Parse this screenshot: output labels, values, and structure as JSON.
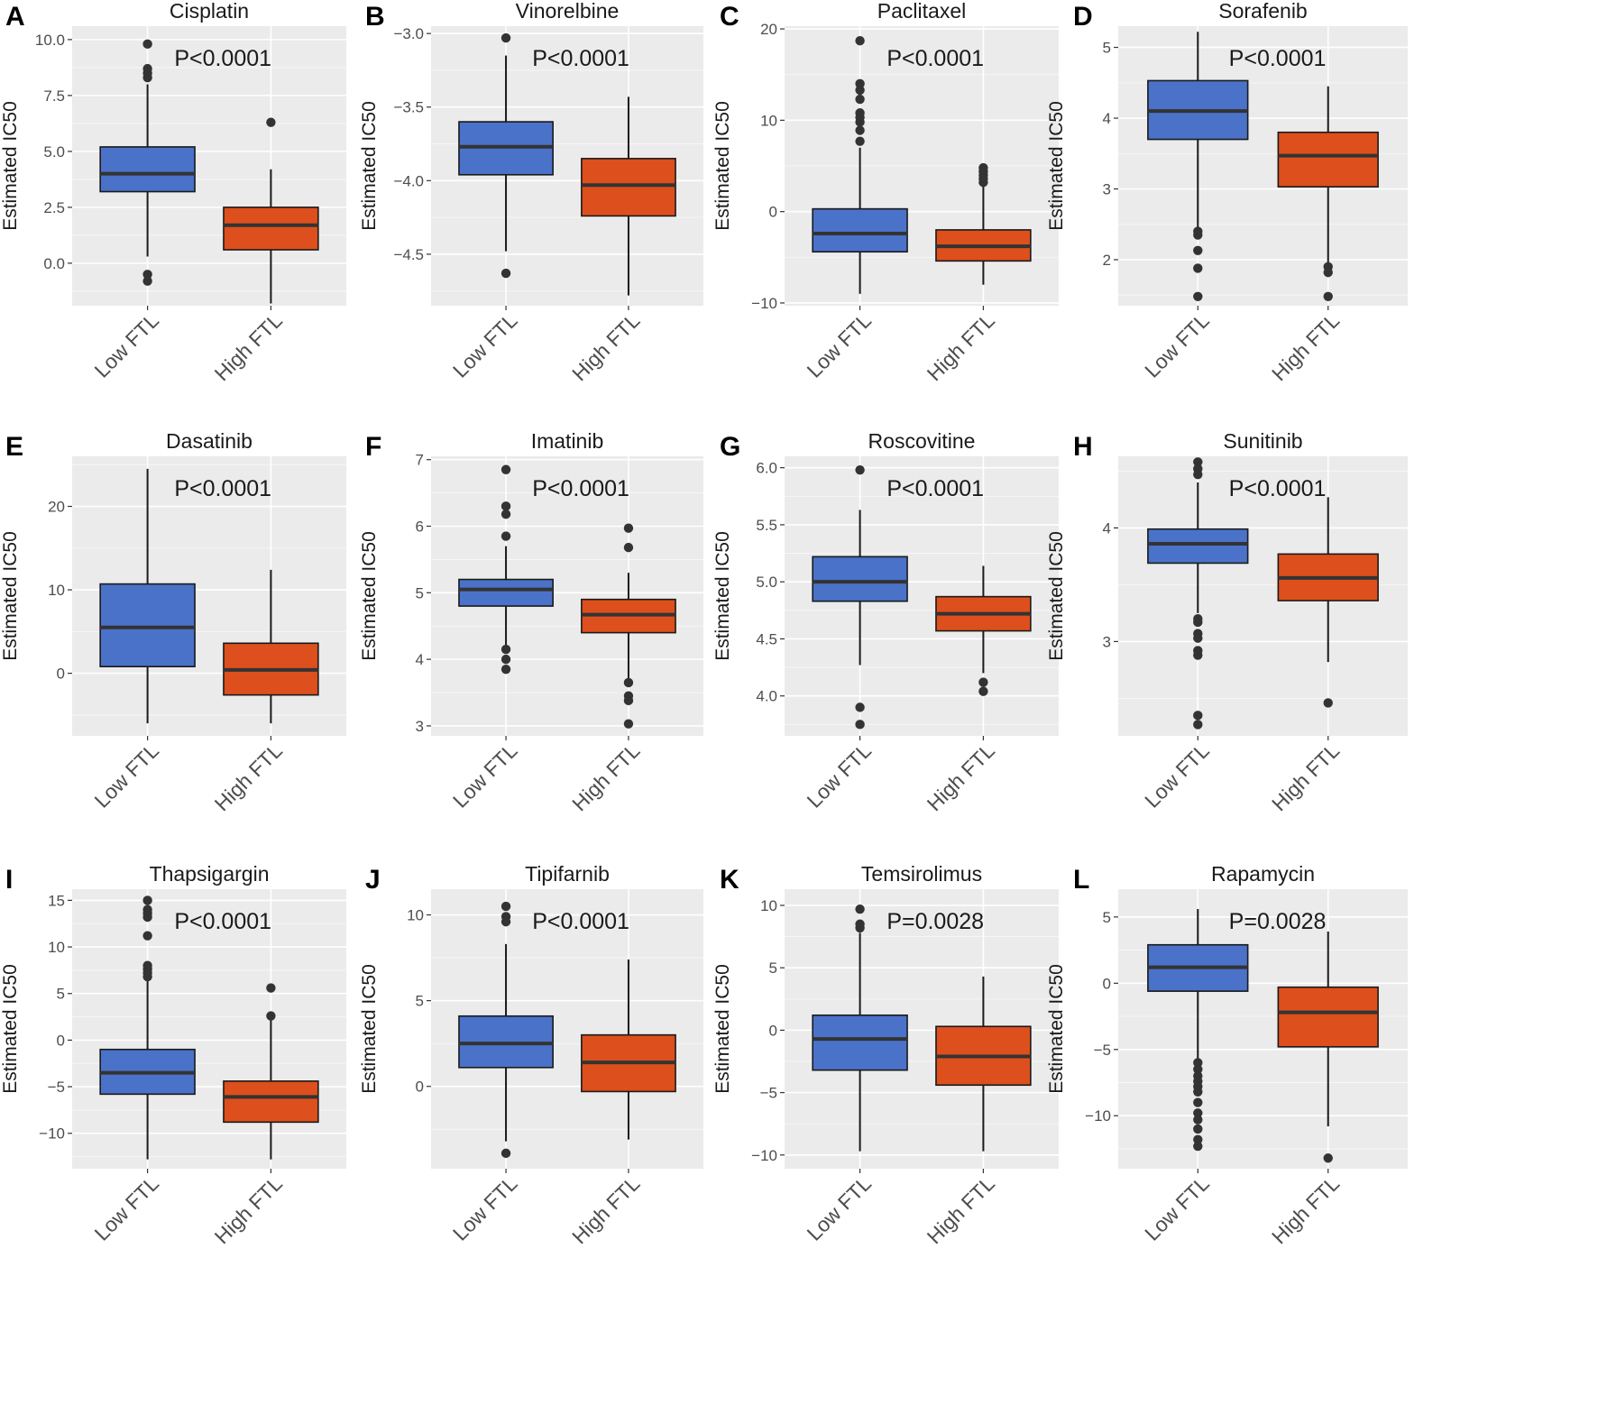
{
  "legend_colors": {
    "Low FTL": "#4a72c9",
    "High FTL": "#dd4f1c"
  },
  "chart_data": [
    {
      "panel": "A",
      "type": "boxplot",
      "title": "Cisplatin",
      "ylabel": "Estimated IC50",
      "categories": [
        "Low FTL",
        "High FTL"
      ],
      "ylim": [
        -1.9,
        10.6
      ],
      "yticks": [
        0,
        2.5,
        5,
        7.5,
        10
      ],
      "ytick_labels": [
        "0.0",
        "2.5",
        "5.0",
        "7.5",
        "10.0"
      ],
      "pvalue": "P<0.0001",
      "boxes": [
        {
          "group": "Low FTL",
          "color": "#4a72c9",
          "lower_whisker": 0.3,
          "q1": 3.2,
          "median": 4.0,
          "q3": 5.2,
          "upper_whisker": 8.0,
          "outliers": [
            9.8,
            8.7,
            8.5,
            8.3,
            -0.5,
            -0.8
          ]
        },
        {
          "group": "High FTL",
          "color": "#dd4f1c",
          "lower_whisker": -1.8,
          "q1": 0.6,
          "median": 1.7,
          "q3": 2.5,
          "upper_whisker": 4.2,
          "outliers": [
            6.3
          ]
        }
      ]
    },
    {
      "panel": "B",
      "type": "boxplot",
      "title": "Vinorelbine",
      "ylabel": "Estimated IC50",
      "categories": [
        "Low FTL",
        "High FTL"
      ],
      "ylim": [
        -4.85,
        -2.95
      ],
      "yticks": [
        -4.5,
        -4.0,
        -3.5,
        -3.0
      ],
      "ytick_labels": [
        "−4.5",
        "−4.0",
        "−3.5",
        "−3.0"
      ],
      "pvalue": "P<0.0001",
      "boxes": [
        {
          "group": "Low FTL",
          "color": "#4a72c9",
          "lower_whisker": -4.48,
          "q1": -3.96,
          "median": -3.77,
          "q3": -3.6,
          "upper_whisker": -3.15,
          "outliers": [
            -3.03,
            -4.63
          ]
        },
        {
          "group": "High FTL",
          "color": "#dd4f1c",
          "lower_whisker": -4.78,
          "q1": -4.24,
          "median": -4.03,
          "q3": -3.85,
          "upper_whisker": -3.43,
          "outliers": []
        }
      ]
    },
    {
      "panel": "C",
      "type": "boxplot",
      "title": "Paclitaxel",
      "ylabel": "Estimated IC50",
      "categories": [
        "Low FTL",
        "High FTL"
      ],
      "ylim": [
        -10.3,
        20.3
      ],
      "yticks": [
        -10,
        0,
        10,
        20
      ],
      "ytick_labels": [
        "−10",
        "0",
        "10",
        "20"
      ],
      "pvalue": "P<0.0001",
      "boxes": [
        {
          "group": "Low FTL",
          "color": "#4a72c9",
          "lower_whisker": -9.0,
          "q1": -4.4,
          "median": -2.4,
          "q3": 0.3,
          "upper_whisker": 7.0,
          "outliers": [
            18.7,
            14.0,
            13.3,
            12.3,
            10.8,
            10.3,
            9.8,
            8.9,
            7.7
          ]
        },
        {
          "group": "High FTL",
          "color": "#dd4f1c",
          "lower_whisker": -8.0,
          "q1": -5.4,
          "median": -3.8,
          "q3": -2.0,
          "upper_whisker": 3.0,
          "outliers": [
            4.8,
            4.4,
            4.0,
            3.6,
            3.2
          ]
        }
      ]
    },
    {
      "panel": "D",
      "type": "boxplot",
      "title": "Sorafenib",
      "ylabel": "Estimated IC50",
      "categories": [
        "Low FTL",
        "High FTL"
      ],
      "ylim": [
        1.35,
        5.3
      ],
      "yticks": [
        2,
        3,
        4,
        5
      ],
      "ytick_labels": [
        "2",
        "3",
        "4",
        "5"
      ],
      "pvalue": "P<0.0001",
      "boxes": [
        {
          "group": "Low FTL",
          "color": "#4a72c9",
          "lower_whisker": 2.45,
          "q1": 3.7,
          "median": 4.1,
          "q3": 4.53,
          "upper_whisker": 5.22,
          "outliers": [
            2.4,
            2.35,
            2.13,
            1.88,
            1.48
          ]
        },
        {
          "group": "High FTL",
          "color": "#dd4f1c",
          "lower_whisker": 1.95,
          "q1": 3.03,
          "median": 3.47,
          "q3": 3.8,
          "upper_whisker": 4.45,
          "outliers": [
            1.9,
            1.82,
            1.48
          ]
        }
      ]
    },
    {
      "panel": "E",
      "type": "boxplot",
      "title": "Dasatinib",
      "ylabel": "Estimated IC50",
      "categories": [
        "Low FTL",
        "High FTL"
      ],
      "ylim": [
        -7.5,
        26
      ],
      "yticks": [
        0,
        10,
        20
      ],
      "ytick_labels": [
        "0",
        "10",
        "20"
      ],
      "pvalue": "P<0.0001",
      "boxes": [
        {
          "group": "Low FTL",
          "color": "#4a72c9",
          "lower_whisker": -6.0,
          "q1": 0.8,
          "median": 5.5,
          "q3": 10.7,
          "upper_whisker": 24.5,
          "outliers": []
        },
        {
          "group": "High FTL",
          "color": "#dd4f1c",
          "lower_whisker": -6.0,
          "q1": -2.6,
          "median": 0.4,
          "q3": 3.6,
          "upper_whisker": 12.4,
          "outliers": []
        }
      ]
    },
    {
      "panel": "F",
      "type": "boxplot",
      "title": "Imatinib",
      "ylabel": "Estimated IC50",
      "categories": [
        "Low FTL",
        "High FTL"
      ],
      "ylim": [
        2.85,
        7.05
      ],
      "yticks": [
        3,
        4,
        5,
        6,
        7
      ],
      "ytick_labels": [
        "3",
        "4",
        "5",
        "6",
        "7"
      ],
      "pvalue": "P<0.0001",
      "boxes": [
        {
          "group": "Low FTL",
          "color": "#4a72c9",
          "lower_whisker": 4.2,
          "q1": 4.8,
          "median": 5.05,
          "q3": 5.2,
          "upper_whisker": 5.7,
          "outliers": [
            6.85,
            6.3,
            6.18,
            5.85,
            4.15,
            4.0,
            3.85
          ]
        },
        {
          "group": "High FTL",
          "color": "#dd4f1c",
          "lower_whisker": 3.7,
          "q1": 4.4,
          "median": 4.67,
          "q3": 4.9,
          "upper_whisker": 5.3,
          "outliers": [
            5.97,
            5.68,
            3.65,
            3.45,
            3.38,
            3.03
          ]
        }
      ]
    },
    {
      "panel": "G",
      "type": "boxplot",
      "title": "Roscovitine",
      "ylabel": "Estimated IC50",
      "categories": [
        "Low FTL",
        "High FTL"
      ],
      "ylim": [
        3.65,
        6.1
      ],
      "yticks": [
        4.0,
        4.5,
        5.0,
        5.5,
        6.0
      ],
      "ytick_labels": [
        "4.0",
        "4.5",
        "5.0",
        "5.5",
        "6.0"
      ],
      "pvalue": "P<0.0001",
      "boxes": [
        {
          "group": "Low FTL",
          "color": "#4a72c9",
          "lower_whisker": 4.27,
          "q1": 4.83,
          "median": 5.0,
          "q3": 5.22,
          "upper_whisker": 5.63,
          "outliers": [
            5.98,
            3.9,
            3.75
          ]
        },
        {
          "group": "High FTL",
          "color": "#dd4f1c",
          "lower_whisker": 4.2,
          "q1": 4.57,
          "median": 4.72,
          "q3": 4.87,
          "upper_whisker": 5.14,
          "outliers": [
            4.12,
            4.04
          ]
        }
      ]
    },
    {
      "panel": "H",
      "type": "boxplot",
      "title": "Sunitinib",
      "ylabel": "Estimated IC50",
      "categories": [
        "Low FTL",
        "High FTL"
      ],
      "ylim": [
        2.17,
        4.63
      ],
      "yticks": [
        3,
        4
      ],
      "ytick_labels": [
        "3",
        "4"
      ],
      "pvalue": "P<0.0001",
      "boxes": [
        {
          "group": "Low FTL",
          "color": "#4a72c9",
          "lower_whisker": 3.25,
          "q1": 3.69,
          "median": 3.86,
          "q3": 3.99,
          "upper_whisker": 4.4,
          "outliers": [
            4.58,
            4.52,
            4.47,
            3.2,
            3.17,
            3.07,
            3.03,
            2.92,
            2.88,
            2.35,
            2.27
          ]
        },
        {
          "group": "High FTL",
          "color": "#dd4f1c",
          "lower_whisker": 2.82,
          "q1": 3.36,
          "median": 3.56,
          "q3": 3.77,
          "upper_whisker": 4.27,
          "outliers": [
            2.46
          ]
        }
      ]
    },
    {
      "panel": "I",
      "type": "boxplot",
      "title": "Thapsigargin",
      "ylabel": "Estimated IC50",
      "categories": [
        "Low FTL",
        "High FTL"
      ],
      "ylim": [
        -13.8,
        16.2
      ],
      "yticks": [
        -10,
        -5,
        0,
        5,
        10,
        15
      ],
      "ytick_labels": [
        "−10",
        "−5",
        "0",
        "5",
        "10",
        "15"
      ],
      "pvalue": "P<0.0001",
      "boxes": [
        {
          "group": "Low FTL",
          "color": "#4a72c9",
          "lower_whisker": -12.8,
          "q1": -5.8,
          "median": -3.5,
          "q3": -1.0,
          "upper_whisker": 6.5,
          "outliers": [
            15.0,
            14.0,
            13.6,
            13.2,
            11.2,
            8.0,
            7.6,
            7.2,
            6.8
          ]
        },
        {
          "group": "High FTL",
          "color": "#dd4f1c",
          "lower_whisker": -12.8,
          "q1": -8.8,
          "median": -6.1,
          "q3": -4.4,
          "upper_whisker": 2.2,
          "outliers": [
            5.6,
            2.6
          ]
        }
      ]
    },
    {
      "panel": "J",
      "type": "boxplot",
      "title": "Tipifarnib",
      "ylabel": "Estimated IC50",
      "categories": [
        "Low FTL",
        "High FTL"
      ],
      "ylim": [
        -4.8,
        11.5
      ],
      "yticks": [
        0,
        5,
        10
      ],
      "ytick_labels": [
        "0",
        "5",
        "10"
      ],
      "pvalue": "P<0.0001",
      "boxes": [
        {
          "group": "Low FTL",
          "color": "#4a72c9",
          "lower_whisker": -3.2,
          "q1": 1.1,
          "median": 2.5,
          "q3": 4.1,
          "upper_whisker": 8.3,
          "outliers": [
            10.5,
            9.9,
            9.6,
            -3.9
          ]
        },
        {
          "group": "High FTL",
          "color": "#dd4f1c",
          "lower_whisker": -3.1,
          "q1": -0.3,
          "median": 1.4,
          "q3": 3.0,
          "upper_whisker": 7.4,
          "outliers": []
        }
      ]
    },
    {
      "panel": "K",
      "type": "boxplot",
      "title": "Temsirolimus",
      "ylabel": "Estimated IC50",
      "categories": [
        "Low FTL",
        "High FTL"
      ],
      "ylim": [
        -11.1,
        11.3
      ],
      "yticks": [
        -10,
        -5,
        0,
        5,
        10
      ],
      "ytick_labels": [
        "−10",
        "−5",
        "0",
        "5",
        "10"
      ],
      "pvalue": "P=0.0028",
      "boxes": [
        {
          "group": "Low FTL",
          "color": "#4a72c9",
          "lower_whisker": -9.7,
          "q1": -3.2,
          "median": -0.7,
          "q3": 1.2,
          "upper_whisker": 7.8,
          "outliers": [
            9.7,
            8.5,
            8.2
          ]
        },
        {
          "group": "High FTL",
          "color": "#dd4f1c",
          "lower_whisker": -9.7,
          "q1": -4.4,
          "median": -2.1,
          "q3": 0.3,
          "upper_whisker": 4.3,
          "outliers": []
        }
      ]
    },
    {
      "panel": "L",
      "type": "boxplot",
      "title": "Rapamycin",
      "ylabel": "Estimated IC50",
      "categories": [
        "Low FTL",
        "High FTL"
      ],
      "ylim": [
        -14,
        7.1
      ],
      "yticks": [
        -10,
        -5,
        0,
        5
      ],
      "ytick_labels": [
        "−10",
        "−5",
        "0",
        "5"
      ],
      "pvalue": "P=0.0028",
      "boxes": [
        {
          "group": "Low FTL",
          "color": "#4a72c9",
          "lower_whisker": -5.9,
          "q1": -0.6,
          "median": 1.2,
          "q3": 2.9,
          "upper_whisker": 5.6,
          "outliers": [
            -6.0,
            -6.5,
            -7.0,
            -7.4,
            -7.8,
            -8.2,
            -9.0,
            -9.8,
            -10.3,
            -11.0,
            -11.8,
            -12.3
          ]
        },
        {
          "group": "High FTL",
          "color": "#dd4f1c",
          "lower_whisker": -10.8,
          "q1": -4.8,
          "median": -2.2,
          "q3": -0.3,
          "upper_whisker": 3.9,
          "outliers": [
            -13.2
          ]
        }
      ]
    }
  ]
}
